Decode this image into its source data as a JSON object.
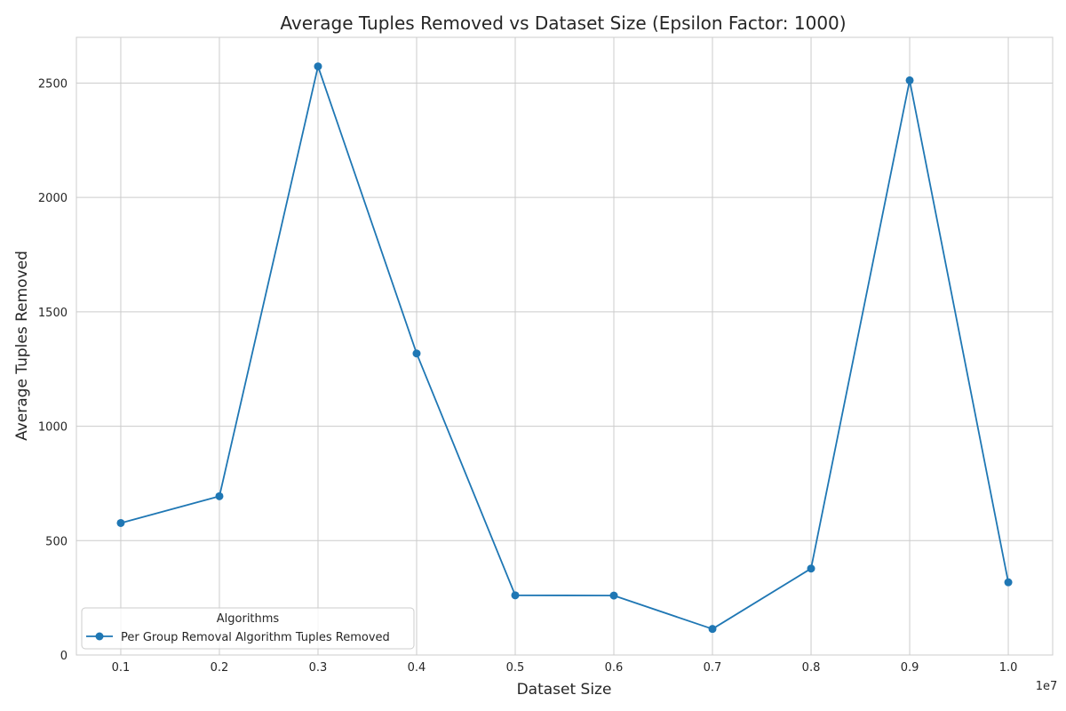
{
  "chart_data": {
    "type": "line",
    "title": "Average Tuples Removed vs Dataset Size (Epsilon Factor: 1000)",
    "xlabel": "Dataset Size",
    "ylabel": "Average Tuples Removed",
    "x_offset_label": "1e7",
    "x_scale": 10000000,
    "x": [
      1000000,
      2000000,
      3000000,
      4000000,
      5000000,
      6000000,
      7000000,
      8000000,
      9000000,
      10000000
    ],
    "x_tick_labels": [
      "0.1",
      "0.2",
      "0.3",
      "0.4",
      "0.5",
      "0.6",
      "0.7",
      "0.8",
      "0.9",
      "1.0"
    ],
    "xlim": [
      550000,
      10450000
    ],
    "ylim": [
      0,
      2700
    ],
    "y_ticks": [
      0,
      500,
      1000,
      1500,
      2000,
      2500
    ],
    "y_tick_labels": [
      "0",
      "500",
      "1000",
      "1500",
      "2000",
      "2500"
    ],
    "series": [
      {
        "name": "Per Group Removal Algorithm Tuples Removed",
        "color": "#1f77b4",
        "marker": "circle",
        "values": [
          577,
          694,
          2573,
          1318,
          261,
          260,
          114,
          378,
          2512,
          318
        ]
      }
    ],
    "grid": true,
    "legend": {
      "title": "Algorithms",
      "placement": "lower-left"
    }
  }
}
